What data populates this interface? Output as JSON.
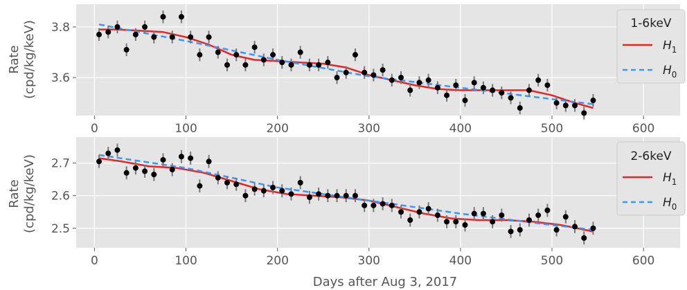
{
  "chart_data": [
    {
      "type": "scatter",
      "ylabel_line1": "Rate",
      "ylabel_line2": "(cpd/kg/keV)",
      "xlim": [
        -20,
        640
      ],
      "ylim": [
        3.45,
        3.89
      ],
      "xticks": [
        0,
        100,
        200,
        300,
        400,
        500,
        600
      ],
      "yticks": [
        3.6,
        3.8
      ],
      "grid": true,
      "legend": {
        "title": "1-6keV",
        "placement": "right",
        "entries": [
          {
            "label": "H",
            "subscript": "1",
            "color": "#ee2222",
            "style": "solid"
          },
          {
            "label": "H",
            "subscript": "0",
            "color": "#3399ff",
            "style": "dashed"
          }
        ]
      },
      "data": {
        "x": [
          5,
          15,
          25,
          35,
          45,
          55,
          65,
          75,
          85,
          95,
          105,
          115,
          125,
          135,
          145,
          155,
          165,
          175,
          185,
          195,
          205,
          215,
          225,
          235,
          245,
          255,
          265,
          275,
          285,
          295,
          305,
          315,
          325,
          335,
          345,
          355,
          365,
          375,
          385,
          395,
          405,
          415,
          425,
          435,
          445,
          455,
          465,
          475,
          485,
          495,
          505,
          515,
          525,
          535,
          545
        ],
        "y": [
          3.77,
          3.78,
          3.8,
          3.71,
          3.77,
          3.8,
          3.76,
          3.84,
          3.76,
          3.84,
          3.76,
          3.69,
          3.76,
          3.7,
          3.65,
          3.69,
          3.65,
          3.72,
          3.67,
          3.69,
          3.66,
          3.65,
          3.7,
          3.65,
          3.65,
          3.66,
          3.6,
          3.62,
          3.69,
          3.62,
          3.61,
          3.63,
          3.59,
          3.6,
          3.55,
          3.58,
          3.59,
          3.56,
          3.53,
          3.57,
          3.51,
          3.58,
          3.56,
          3.55,
          3.54,
          3.52,
          3.48,
          3.55,
          3.59,
          3.57,
          3.5,
          3.49,
          3.49,
          3.46,
          3.51
        ],
        "err": 0.025
      },
      "series": [
        {
          "name": "H1",
          "color": "#ee2222",
          "style": "solid",
          "x": [
            5,
            25,
            50,
            75,
            100,
            125,
            150,
            175,
            200,
            225,
            250,
            275,
            300,
            325,
            350,
            375,
            400,
            425,
            450,
            475,
            500,
            525,
            545
          ],
          "y": [
            3.79,
            3.79,
            3.785,
            3.78,
            3.76,
            3.73,
            3.69,
            3.67,
            3.665,
            3.66,
            3.655,
            3.64,
            3.61,
            3.59,
            3.57,
            3.555,
            3.55,
            3.55,
            3.55,
            3.55,
            3.53,
            3.5,
            3.48
          ]
        },
        {
          "name": "H0",
          "color": "#3399ff",
          "style": "dashed",
          "x": [
            5,
            100,
            200,
            300,
            400,
            500,
            545
          ],
          "y": [
            3.81,
            3.745,
            3.67,
            3.605,
            3.56,
            3.515,
            3.495
          ]
        }
      ]
    },
    {
      "type": "scatter",
      "ylabel_line1": "Rate",
      "ylabel_line2": "(cpd/kg/keV)",
      "xlabel": "Days after Aug 3, 2017",
      "xlim": [
        -20,
        640
      ],
      "ylim": [
        2.44,
        2.78
      ],
      "xticks": [
        0,
        100,
        200,
        300,
        400,
        500,
        600
      ],
      "yticks": [
        2.5,
        2.6,
        2.7
      ],
      "grid": true,
      "legend": {
        "title": "2-6keV",
        "placement": "right",
        "entries": [
          {
            "label": "H",
            "subscript": "1",
            "color": "#ee2222",
            "style": "solid"
          },
          {
            "label": "H",
            "subscript": "0",
            "color": "#3399ff",
            "style": "dashed"
          }
        ]
      },
      "data": {
        "x": [
          5,
          15,
          25,
          35,
          45,
          55,
          65,
          75,
          85,
          95,
          105,
          115,
          125,
          135,
          145,
          155,
          165,
          175,
          185,
          195,
          205,
          215,
          225,
          235,
          245,
          255,
          265,
          275,
          285,
          295,
          305,
          315,
          325,
          335,
          345,
          355,
          365,
          375,
          385,
          395,
          405,
          415,
          425,
          435,
          445,
          455,
          465,
          475,
          485,
          495,
          505,
          515,
          525,
          535,
          545
        ],
        "y": [
          2.705,
          2.73,
          2.74,
          2.67,
          2.685,
          2.675,
          2.665,
          2.71,
          2.68,
          2.72,
          2.715,
          2.63,
          2.705,
          2.655,
          2.64,
          2.635,
          2.6,
          2.62,
          2.615,
          2.625,
          2.615,
          2.605,
          2.64,
          2.595,
          2.605,
          2.6,
          2.6,
          2.6,
          2.6,
          2.57,
          2.57,
          2.575,
          2.57,
          2.55,
          2.525,
          2.55,
          2.56,
          2.54,
          2.52,
          2.52,
          2.51,
          2.545,
          2.545,
          2.52,
          2.54,
          2.49,
          2.495,
          2.525,
          2.54,
          2.555,
          2.495,
          2.535,
          2.505,
          2.47,
          2.5
        ],
        "err": 0.02
      },
      "series": [
        {
          "name": "H1",
          "color": "#ee2222",
          "style": "solid",
          "x": [
            5,
            30,
            60,
            90,
            120,
            150,
            180,
            210,
            240,
            270,
            300,
            330,
            360,
            390,
            420,
            450,
            480,
            510,
            545
          ],
          "y": [
            2.715,
            2.705,
            2.69,
            2.685,
            2.67,
            2.645,
            2.62,
            2.605,
            2.6,
            2.595,
            2.585,
            2.565,
            2.545,
            2.53,
            2.525,
            2.525,
            2.52,
            2.51,
            2.49
          ]
        },
        {
          "name": "H0",
          "color": "#3399ff",
          "style": "dashed",
          "x": [
            5,
            100,
            200,
            300,
            400,
            500,
            545
          ],
          "y": [
            2.725,
            2.685,
            2.625,
            2.585,
            2.545,
            2.51,
            2.495
          ]
        }
      ]
    }
  ]
}
